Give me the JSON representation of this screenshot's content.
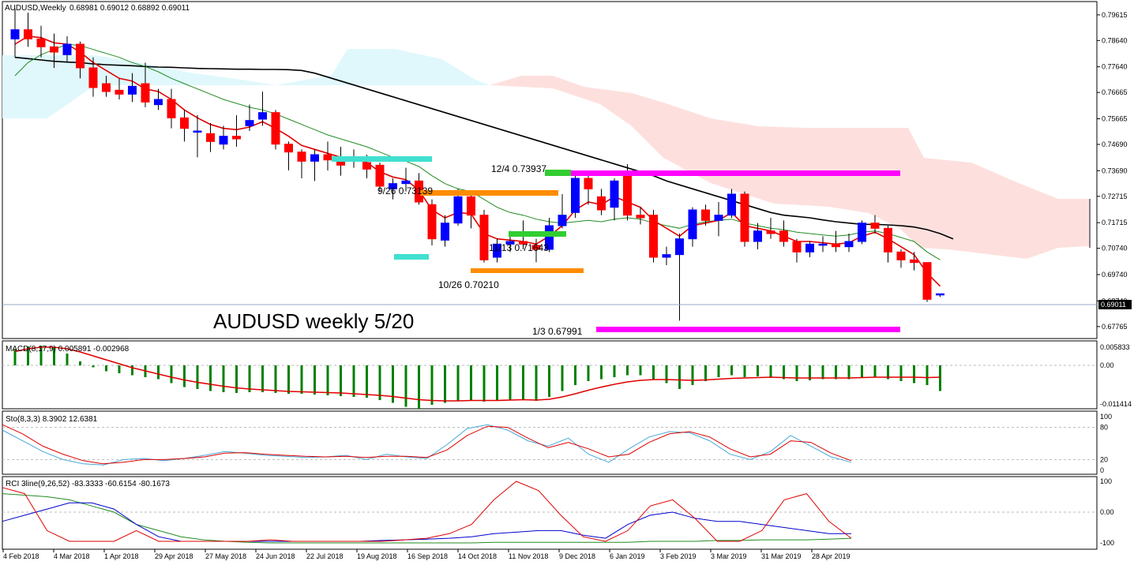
{
  "header": {
    "title": "AUDUSD,Weekly",
    "ohlc": "0.68981 0.69012 0.68892 0.69011"
  },
  "overlay_title": "AUDUSD weekly 5/20",
  "price_badge": "0.69011",
  "annotations": {
    "a_0926": "9/26 0.73139",
    "a_1204": "12/4 0.73937",
    "a_1113": "11/13 0.71643",
    "a_1026": "10/26 0.70210",
    "a_0103": "1/3 0.67991"
  },
  "indicators": {
    "macd": "MACD(8,17,9) 0.005891 -0.002968",
    "sto": "Sto(8,3,3) 8.3902 12.6381",
    "rci": "RCI 3line(9,26,52) -83.3333 -60.6154 -80.1673"
  },
  "colors": {
    "bull": "#0000ff",
    "bear": "#ff0000",
    "red_line": "#e00000",
    "green_line": "#228b22",
    "black_line": "#000000",
    "kumo_bull": "#e0f8fc",
    "kumo_bear": "#fde0de",
    "magenta": "#ff00ff",
    "orange": "#ff8c00",
    "cyan": "#40e0d0",
    "lime": "#32cd32",
    "macd_hist": "#008000",
    "sto_main": "#4aa8d8",
    "sto_signal": "#dd0000",
    "rci_short": "#dd0000",
    "rci_mid": "#0000cc",
    "rci_long": "#228b22"
  },
  "chart_data": {
    "type": "candlestick",
    "price_axis_ticks": [
      "0.79615",
      "0.78640",
      "0.77640",
      "0.76665",
      "0.75665",
      "0.74690",
      "0.73690",
      "0.72715",
      "0.71715",
      "0.70740",
      "0.69740",
      "0.68740",
      "0.67765"
    ],
    "price_range": [
      0.674,
      0.8
    ],
    "macd_ticks": [
      "0.005833",
      "0.00",
      "-0.011414"
    ],
    "sto_ticks": [
      "100",
      "80",
      "20",
      "0"
    ],
    "rci_ticks": [
      "100",
      "0.00",
      "-100"
    ],
    "date_labels": [
      "4 Feb 2018",
      "4 Mar 2018",
      "1 Apr 2018",
      "29 Apr 2018",
      "27 May 2018",
      "24 Jun 2018",
      "22 Jul 2018",
      "19 Aug 2018",
      "16 Sep 2018",
      "14 Oct 2018",
      "11 Nov 2018",
      "9 Dec 2018",
      "6 Jan 2019",
      "3 Feb 2019",
      "3 Mar 2019",
      "31 Mar 2019",
      "28 Apr 2019"
    ],
    "candles": [
      {
        "o": 0.787,
        "c": 0.7905,
        "h": 0.7985,
        "l": 0.78
      },
      {
        "o": 0.7905,
        "c": 0.787,
        "h": 0.797,
        "l": 0.784
      },
      {
        "o": 0.787,
        "c": 0.784,
        "h": 0.792,
        "l": 0.78
      },
      {
        "o": 0.784,
        "c": 0.782,
        "h": 0.789,
        "l": 0.776
      },
      {
        "o": 0.781,
        "c": 0.785,
        "h": 0.788,
        "l": 0.778
      },
      {
        "o": 0.785,
        "c": 0.776,
        "h": 0.786,
        "l": 0.772
      },
      {
        "o": 0.776,
        "c": 0.7685,
        "h": 0.78,
        "l": 0.765
      },
      {
        "o": 0.77,
        "c": 0.767,
        "h": 0.773,
        "l": 0.765
      },
      {
        "o": 0.7675,
        "c": 0.766,
        "h": 0.772,
        "l": 0.764
      },
      {
        "o": 0.766,
        "c": 0.769,
        "h": 0.774,
        "l": 0.763
      },
      {
        "o": 0.77,
        "c": 0.763,
        "h": 0.778,
        "l": 0.761
      },
      {
        "o": 0.762,
        "c": 0.764,
        "h": 0.768,
        "l": 0.76
      },
      {
        "o": 0.764,
        "c": 0.757,
        "h": 0.768,
        "l": 0.753
      },
      {
        "o": 0.757,
        "c": 0.753,
        "h": 0.76,
        "l": 0.748
      },
      {
        "o": 0.752,
        "c": 0.752,
        "h": 0.758,
        "l": 0.742
      },
      {
        "o": 0.751,
        "c": 0.748,
        "h": 0.755,
        "l": 0.744
      },
      {
        "o": 0.747,
        "c": 0.75,
        "h": 0.754,
        "l": 0.745
      },
      {
        "o": 0.75,
        "c": 0.749,
        "h": 0.758,
        "l": 0.746
      },
      {
        "o": 0.754,
        "c": 0.756,
        "h": 0.762,
        "l": 0.752
      },
      {
        "o": 0.7565,
        "c": 0.759,
        "h": 0.767,
        "l": 0.754
      },
      {
        "o": 0.759,
        "c": 0.747,
        "h": 0.76,
        "l": 0.745
      },
      {
        "o": 0.747,
        "c": 0.744,
        "h": 0.748,
        "l": 0.737
      },
      {
        "o": 0.744,
        "c": 0.7405,
        "h": 0.745,
        "l": 0.734
      },
      {
        "o": 0.7405,
        "c": 0.743,
        "h": 0.745,
        "l": 0.733
      },
      {
        "o": 0.743,
        "c": 0.741,
        "h": 0.748,
        "l": 0.737
      },
      {
        "o": 0.742,
        "c": 0.739,
        "h": 0.746,
        "l": 0.735
      },
      {
        "o": 0.7415,
        "c": 0.741,
        "h": 0.745,
        "l": 0.738
      },
      {
        "o": 0.74,
        "c": 0.7375,
        "h": 0.743,
        "l": 0.734
      },
      {
        "o": 0.739,
        "c": 0.731,
        "h": 0.74,
        "l": 0.729
      },
      {
        "o": 0.73,
        "c": 0.732,
        "h": 0.734,
        "l": 0.726
      },
      {
        "o": 0.732,
        "c": 0.733,
        "h": 0.738,
        "l": 0.729
      },
      {
        "o": 0.733,
        "c": 0.725,
        "h": 0.736,
        "l": 0.724
      },
      {
        "o": 0.724,
        "c": 0.711,
        "h": 0.726,
        "l": 0.7085
      },
      {
        "o": 0.7105,
        "c": 0.717,
        "h": 0.72,
        "l": 0.708
      },
      {
        "o": 0.717,
        "c": 0.727,
        "h": 0.73,
        "l": 0.716
      },
      {
        "o": 0.727,
        "c": 0.72,
        "h": 0.728,
        "l": 0.715
      },
      {
        "o": 0.72,
        "c": 0.703,
        "h": 0.722,
        "l": 0.702
      },
      {
        "o": 0.704,
        "c": 0.709,
        "h": 0.711,
        "l": 0.702
      },
      {
        "o": 0.709,
        "c": 0.71,
        "h": 0.714,
        "l": 0.706
      },
      {
        "o": 0.71,
        "c": 0.709,
        "h": 0.718,
        "l": 0.707
      },
      {
        "o": 0.7085,
        "c": 0.707,
        "h": 0.711,
        "l": 0.7021
      },
      {
        "o": 0.707,
        "c": 0.716,
        "h": 0.719,
        "l": 0.706
      },
      {
        "o": 0.716,
        "c": 0.72,
        "h": 0.728,
        "l": 0.715
      },
      {
        "o": 0.721,
        "c": 0.734,
        "h": 0.735,
        "l": 0.719
      },
      {
        "o": 0.734,
        "c": 0.73,
        "h": 0.735,
        "l": 0.724
      },
      {
        "o": 0.727,
        "c": 0.722,
        "h": 0.73,
        "l": 0.72
      },
      {
        "o": 0.723,
        "c": 0.733,
        "h": 0.734,
        "l": 0.718
      },
      {
        "o": 0.7365,
        "c": 0.72,
        "h": 0.7394,
        "l": 0.718
      },
      {
        "o": 0.72,
        "c": 0.719,
        "h": 0.723,
        "l": 0.7165
      },
      {
        "o": 0.72,
        "c": 0.704,
        "h": 0.722,
        "l": 0.702
      },
      {
        "o": 0.704,
        "c": 0.705,
        "h": 0.708,
        "l": 0.701
      },
      {
        "o": 0.705,
        "c": 0.711,
        "h": 0.713,
        "l": 0.6799
      },
      {
        "o": 0.711,
        "c": 0.722,
        "h": 0.723,
        "l": 0.708
      },
      {
        "o": 0.722,
        "c": 0.718,
        "h": 0.724,
        "l": 0.716
      },
      {
        "o": 0.718,
        "c": 0.72,
        "h": 0.725,
        "l": 0.712
      },
      {
        "o": 0.72,
        "c": 0.728,
        "h": 0.73,
        "l": 0.719
      },
      {
        "o": 0.728,
        "c": 0.71,
        "h": 0.729,
        "l": 0.708
      },
      {
        "o": 0.71,
        "c": 0.714,
        "h": 0.717,
        "l": 0.707
      },
      {
        "o": 0.714,
        "c": 0.713,
        "h": 0.719,
        "l": 0.711
      },
      {
        "o": 0.714,
        "c": 0.71,
        "h": 0.718,
        "l": 0.708
      },
      {
        "o": 0.71,
        "c": 0.706,
        "h": 0.711,
        "l": 0.702
      },
      {
        "o": 0.706,
        "c": 0.709,
        "h": 0.71,
        "l": 0.704
      },
      {
        "o": 0.709,
        "c": 0.709,
        "h": 0.712,
        "l": 0.706
      },
      {
        "o": 0.709,
        "c": 0.708,
        "h": 0.714,
        "l": 0.706
      },
      {
        "o": 0.708,
        "c": 0.71,
        "h": 0.713,
        "l": 0.706
      },
      {
        "o": 0.71,
        "c": 0.717,
        "h": 0.718,
        "l": 0.709
      },
      {
        "o": 0.717,
        "c": 0.715,
        "h": 0.72,
        "l": 0.713
      },
      {
        "o": 0.715,
        "c": 0.706,
        "h": 0.716,
        "l": 0.702
      },
      {
        "o": 0.706,
        "c": 0.703,
        "h": 0.707,
        "l": 0.7
      },
      {
        "o": 0.703,
        "c": 0.702,
        "h": 0.706,
        "l": 0.699
      },
      {
        "o": 0.702,
        "c": 0.688,
        "h": 0.702,
        "l": 0.687
      },
      {
        "o": 0.6898,
        "c": 0.6901,
        "h": 0.6901,
        "l": 0.6889
      }
    ],
    "sma_black": [
      0.78,
      0.7795,
      0.779,
      0.7785,
      0.7782,
      0.778,
      0.7775,
      0.7772,
      0.777,
      0.7768,
      0.7765,
      0.7763,
      0.7762,
      0.776,
      0.7758,
      0.7757,
      0.7756,
      0.7755,
      0.7755,
      0.7754,
      0.7754,
      0.7753,
      0.775,
      0.774,
      0.7725,
      0.771,
      0.7695,
      0.768,
      0.7665,
      0.765,
      0.7635,
      0.762,
      0.7605,
      0.759,
      0.7575,
      0.756,
      0.7545,
      0.753,
      0.7515,
      0.75,
      0.7485,
      0.747,
      0.7455,
      0.744,
      0.7425,
      0.741,
      0.7395,
      0.738,
      0.7365,
      0.735,
      0.733,
      0.7315,
      0.73,
      0.7285,
      0.727,
      0.7255,
      0.724,
      0.7225,
      0.721,
      0.72,
      0.7195,
      0.719,
      0.7182,
      0.7175,
      0.717,
      0.7165,
      0.7165,
      0.7163,
      0.716,
      0.7155,
      0.7145,
      0.713,
      0.711
    ],
    "ema_red": [
      0.785,
      0.788,
      0.7875,
      0.7855,
      0.785,
      0.782,
      0.778,
      0.775,
      0.772,
      0.771,
      0.768,
      0.767,
      0.764,
      0.76,
      0.757,
      0.7545,
      0.753,
      0.7525,
      0.7535,
      0.7555,
      0.753,
      0.75,
      0.7465,
      0.745,
      0.7435,
      0.742,
      0.7415,
      0.74,
      0.7365,
      0.7345,
      0.7335,
      0.7295,
      0.722,
      0.719,
      0.721,
      0.7205,
      0.713,
      0.711,
      0.7105,
      0.71,
      0.709,
      0.712,
      0.716,
      0.722,
      0.725,
      0.724,
      0.727,
      0.725,
      0.723,
      0.718,
      0.715,
      0.712,
      0.716,
      0.717,
      0.718,
      0.721,
      0.716,
      0.715,
      0.714,
      0.712,
      0.71,
      0.71,
      0.7095,
      0.709,
      0.7095,
      0.712,
      0.7135,
      0.711,
      0.708,
      0.705,
      0.698,
      0.693
    ],
    "ma_green": [
      0.773,
      0.778,
      0.781,
      0.783,
      0.785,
      0.7845,
      0.783,
      0.7815,
      0.78,
      0.778,
      0.7765,
      0.7745,
      0.772,
      0.77,
      0.768,
      0.766,
      0.764,
      0.7625,
      0.761,
      0.76,
      0.7585,
      0.7565,
      0.7545,
      0.7525,
      0.7505,
      0.749,
      0.7475,
      0.746,
      0.744,
      0.742,
      0.7405,
      0.7385,
      0.735,
      0.732,
      0.73,
      0.729,
      0.726,
      0.723,
      0.721,
      0.72,
      0.7185,
      0.7175,
      0.717,
      0.7175,
      0.718,
      0.7175,
      0.7185,
      0.719,
      0.7185,
      0.717,
      0.716,
      0.715,
      0.7165,
      0.7175,
      0.718,
      0.7185,
      0.717,
      0.716,
      0.715,
      0.7145,
      0.7135,
      0.713,
      0.7125,
      0.712,
      0.7125,
      0.7135,
      0.714,
      0.713,
      0.7115,
      0.71,
      0.706,
      0.703
    ],
    "macd_hist": [
      0.004,
      0.0048,
      0.005,
      0.0045,
      0.003,
      0.001,
      -0.0005,
      -0.0015,
      -0.002,
      -0.0025,
      -0.003,
      -0.0035,
      -0.0045,
      -0.0055,
      -0.006,
      -0.0065,
      -0.0068,
      -0.007,
      -0.0068,
      -0.0068,
      -0.007,
      -0.0072,
      -0.0072,
      -0.0074,
      -0.0076,
      -0.0078,
      -0.008,
      -0.0082,
      -0.0088,
      -0.0095,
      -0.0105,
      -0.011,
      -0.01,
      -0.0095,
      -0.009,
      -0.0088,
      -0.0092,
      -0.009,
      -0.0088,
      -0.0086,
      -0.009,
      -0.008,
      -0.0065,
      -0.005,
      -0.004,
      -0.0035,
      -0.003,
      -0.0025,
      -0.0025,
      -0.0035,
      -0.0045,
      -0.006,
      -0.005,
      -0.004,
      -0.003,
      -0.0025,
      -0.003,
      -0.0028,
      -0.003,
      -0.0035,
      -0.004,
      -0.0038,
      -0.0035,
      -0.0035,
      -0.0035,
      -0.003,
      -0.003,
      -0.0035,
      -0.004,
      -0.0045,
      -0.005,
      -0.0065
    ],
    "macd_signal": [
      0.0035,
      0.0042,
      0.0046,
      0.0046,
      0.0042,
      0.0034,
      0.0024,
      0.0014,
      0.0004,
      -0.0006,
      -0.0014,
      -0.0022,
      -0.003,
      -0.0037,
      -0.0043,
      -0.0048,
      -0.0053,
      -0.0057,
      -0.006,
      -0.0062,
      -0.0064,
      -0.0066,
      -0.0067,
      -0.0068,
      -0.0069,
      -0.007,
      -0.0072,
      -0.0074,
      -0.0076,
      -0.0079,
      -0.0083,
      -0.0087,
      -0.0089,
      -0.009,
      -0.009,
      -0.0089,
      -0.0089,
      -0.0089,
      -0.0088,
      -0.0087,
      -0.0088,
      -0.0086,
      -0.008,
      -0.0072,
      -0.0063,
      -0.0055,
      -0.0048,
      -0.0042,
      -0.0038,
      -0.0036,
      -0.0036,
      -0.0037,
      -0.0038,
      -0.0037,
      -0.0035,
      -0.0033,
      -0.0032,
      -0.0031,
      -0.003,
      -0.0031,
      -0.0032,
      -0.0032,
      -0.0032,
      -0.0032,
      -0.0032,
      -0.0031,
      -0.003,
      -0.003,
      -0.003,
      -0.003,
      -0.0031,
      -0.003
    ]
  }
}
